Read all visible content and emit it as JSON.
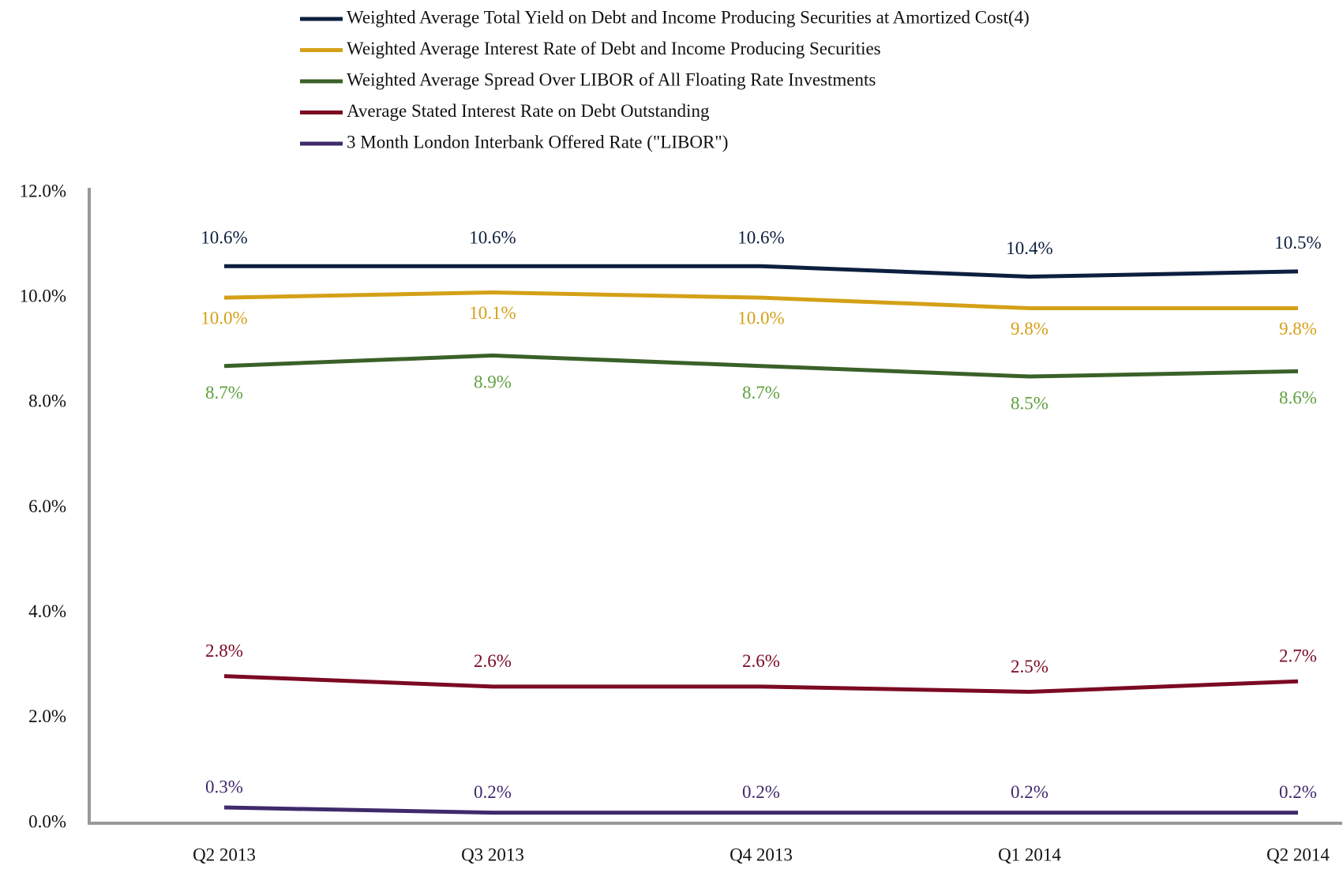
{
  "chart_data": {
    "type": "line",
    "categories": [
      "Q2 2013",
      "Q3 2013",
      "Q4 2013",
      "Q1 2014",
      "Q2 2014"
    ],
    "series": [
      {
        "name": "Weighted Average Total Yield on Debt and Income Producing Securities at Amortized Cost(4)",
        "color": "#0c1f3f",
        "label_color": "#0c1f3f",
        "values": [
          10.6,
          10.6,
          10.6,
          10.4,
          10.5
        ],
        "value_labels": [
          "10.6%",
          "10.6%",
          "10.6%",
          "10.4%",
          "10.5%"
        ]
      },
      {
        "name": "Weighted Average Interest Rate of Debt and Income Producing Securities",
        "color": "#d4a017",
        "label_color": "#d4a017",
        "values": [
          10.0,
          10.1,
          10.0,
          9.8,
          9.8
        ],
        "value_labels": [
          "10.0%",
          "10.1%",
          "10.0%",
          "9.8%",
          "9.8%"
        ]
      },
      {
        "name": "Weighted Average Spread Over LIBOR of All Floating Rate Investments",
        "color": "#3a6128",
        "label_color": "#5fa040",
        "values": [
          8.7,
          8.9,
          8.7,
          8.5,
          8.6
        ],
        "value_labels": [
          "8.7%",
          "8.9%",
          "8.7%",
          "8.5%",
          "8.6%"
        ]
      },
      {
        "name": "Average Stated Interest Rate on Debt Outstanding",
        "color": "#7b0a22",
        "label_color": "#7b0a22",
        "values": [
          2.8,
          2.6,
          2.6,
          2.5,
          2.7
        ],
        "value_labels": [
          "2.8%",
          "2.6%",
          "2.6%",
          "2.5%",
          "2.7%"
        ]
      },
      {
        "name": "3 Month London Interbank Offered Rate (\"LIBOR\")",
        "color": "#3f2a6b",
        "label_color": "#3f2a6b",
        "values": [
          0.3,
          0.2,
          0.2,
          0.2,
          0.2
        ],
        "value_labels": [
          "0.3%",
          "0.2%",
          "0.2%",
          "0.2%",
          "0.2%"
        ]
      }
    ],
    "ylim": [
      0,
      12
    ],
    "yticks": [
      {
        "value": 0,
        "label": "0.0%"
      },
      {
        "value": 2,
        "label": "2.0%"
      },
      {
        "value": 4,
        "label": "4.0%"
      },
      {
        "value": 6,
        "label": "6.0%"
      },
      {
        "value": 8,
        "label": "8.0%"
      },
      {
        "value": 10,
        "label": "10.0%"
      },
      {
        "value": 12,
        "label": "12.0%"
      }
    ],
    "legend": "top",
    "grid": false
  }
}
